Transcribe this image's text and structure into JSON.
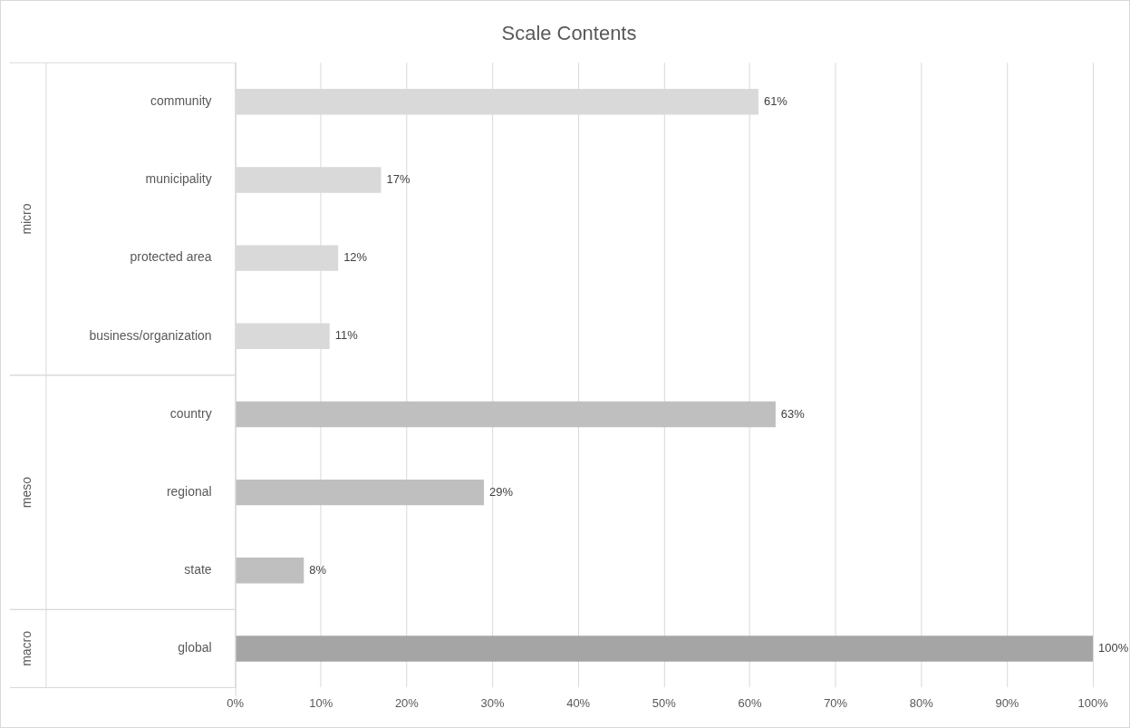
{
  "chart_data": {
    "type": "bar",
    "orientation": "horizontal",
    "title": "Scale Contents",
    "annotations": [
      "micro",
      "meso",
      "macro"
    ],
    "categories": [
      "community",
      "municipality",
      "protected area",
      "business/organization",
      "country",
      "regional",
      "state",
      "global"
    ],
    "series": [
      {
        "color": "#d9d9d9",
        "values": [
          61,
          17,
          12,
          11,
          null,
          null,
          null,
          null
        ],
        "value_labels": [
          "61%",
          "17%",
          "12%",
          "11%",
          null,
          null,
          null,
          null
        ]
      },
      {
        "color": "#bfbfbf",
        "values": [
          null,
          null,
          null,
          null,
          63,
          29,
          8,
          null
        ],
        "value_labels": [
          null,
          null,
          null,
          null,
          "63%",
          "29%",
          "8%",
          null
        ]
      },
      {
        "color": "#a5a5a5",
        "values": [
          null,
          null,
          null,
          null,
          null,
          null,
          null,
          100
        ],
        "value_labels": [
          null,
          null,
          null,
          null,
          null,
          null,
          null,
          "100%"
        ]
      }
    ],
    "xlim": [
      0,
      100
    ],
    "xticks": [
      {
        "value": 0,
        "label": "0%"
      },
      {
        "value": 10,
        "label": "10%"
      },
      {
        "value": 20,
        "label": "20%"
      },
      {
        "value": 30,
        "label": "30%"
      },
      {
        "value": 40,
        "label": "40%"
      },
      {
        "value": 50,
        "label": "50%"
      },
      {
        "value": 60,
        "label": "60%"
      },
      {
        "value": 70,
        "label": "70%"
      },
      {
        "value": 80,
        "label": "80%"
      },
      {
        "value": 90,
        "label": "90%"
      },
      {
        "value": 100,
        "label": "100%"
      }
    ],
    "grid": "x",
    "legend": false
  }
}
